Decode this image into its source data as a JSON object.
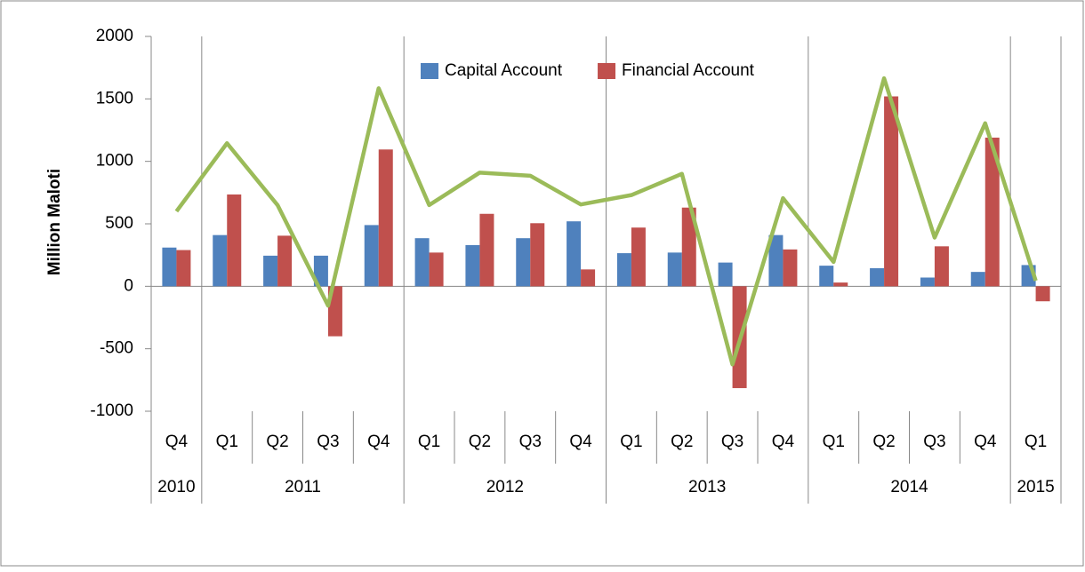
{
  "chart_data": {
    "type": "bar-line",
    "y_label": "Million Maloti",
    "groups": [
      {
        "label": "2010",
        "categories": [
          "Q4"
        ]
      },
      {
        "label": "2011",
        "categories": [
          "Q1",
          "Q2",
          "Q3",
          "Q4"
        ]
      },
      {
        "label": "2012",
        "categories": [
          "Q1",
          "Q2",
          "Q3",
          "Q4"
        ]
      },
      {
        "label": "2013",
        "categories": [
          "Q1",
          "Q2",
          "Q3",
          "Q4"
        ]
      },
      {
        "label": "2014",
        "categories": [
          "Q1",
          "Q2",
          "Q3",
          "Q4"
        ]
      },
      {
        "label": "2015",
        "categories": [
          "Q1"
        ]
      }
    ],
    "series": [
      {
        "name": "Capital Account",
        "type": "bar",
        "color": "#4f81bd",
        "values": [
          310,
          410,
          245,
          245,
          490,
          385,
          330,
          385,
          520,
          265,
          270,
          190,
          410,
          165,
          145,
          70,
          115,
          170
        ]
      },
      {
        "name": "Financial Account",
        "type": "bar",
        "color": "#c0504d",
        "values": [
          290,
          735,
          405,
          -400,
          1095,
          270,
          580,
          505,
          135,
          470,
          630,
          -815,
          295,
          30,
          1520,
          320,
          1190,
          -120
        ]
      },
      {
        "type": "line",
        "color": "#9bbb59",
        "values": [
          600,
          1145,
          650,
          -155,
          1585,
          650,
          910,
          885,
          655,
          730,
          900,
          -625,
          705,
          195,
          1665,
          390,
          1305,
          45
        ]
      }
    ],
    "ylim": [
      -1000,
      2000
    ],
    "yticks": [
      -1000,
      -500,
      0,
      500,
      1000,
      1500,
      2000
    ],
    "grid": false,
    "legend": "top"
  }
}
